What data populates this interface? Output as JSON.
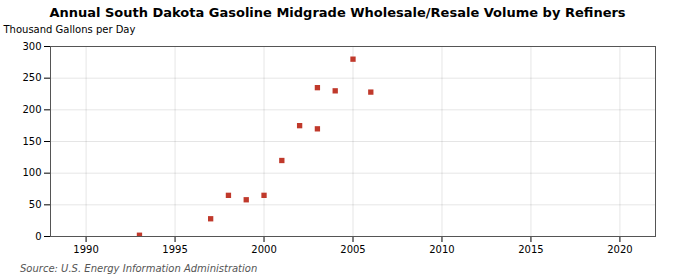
{
  "chart_data": {
    "type": "scatter",
    "title": "Annual South Dakota Gasoline Midgrade Wholesale/Resale Volume by Refiners",
    "ylabel": "Thousand Gallons per Day",
    "source": "Source: U.S. Energy Information Administration",
    "x": [
      1993,
      1997,
      1998,
      1999,
      2000,
      2001,
      2002,
      2003,
      2003,
      2004,
      2005,
      2006
    ],
    "values": [
      2,
      28,
      65,
      58,
      65,
      120,
      175,
      235,
      170,
      230,
      280,
      228
    ],
    "color": "#c0392b",
    "marker": "square",
    "xlim": [
      1988,
      2022
    ],
    "ylim": [
      0,
      300
    ],
    "xticks": [
      1990,
      1995,
      2000,
      2005,
      2010,
      2015,
      2020
    ],
    "yticks": [
      0,
      50,
      100,
      150,
      200,
      250,
      300
    ],
    "grid": true
  }
}
